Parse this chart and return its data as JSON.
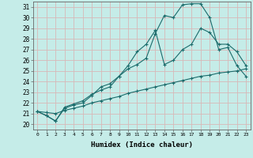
{
  "xlabel": "Humidex (Indice chaleur)",
  "background_color": "#c5ece8",
  "grid_color": "#d8b8b8",
  "line_color": "#1a6b6b",
  "xlim": [
    -0.5,
    23.5
  ],
  "ylim": [
    19.5,
    31.5
  ],
  "xticks": [
    0,
    1,
    2,
    3,
    4,
    5,
    6,
    7,
    8,
    9,
    10,
    11,
    12,
    13,
    14,
    15,
    16,
    17,
    18,
    19,
    20,
    21,
    22,
    23
  ],
  "yticks": [
    20,
    21,
    22,
    23,
    24,
    25,
    26,
    27,
    28,
    29,
    30,
    31
  ],
  "line1_x": [
    0,
    1,
    2,
    3,
    4,
    5,
    6,
    7,
    8,
    9,
    10,
    11,
    12,
    13,
    14,
    15,
    16,
    17,
    18,
    19,
    20,
    21,
    22,
    23
  ],
  "line1_y": [
    21.2,
    20.8,
    20.3,
    21.6,
    21.9,
    22.2,
    22.8,
    23.2,
    23.5,
    24.5,
    25.2,
    25.6,
    26.2,
    28.5,
    30.2,
    30.0,
    31.2,
    31.3,
    31.3,
    30.0,
    27.0,
    27.2,
    25.5,
    24.5
  ],
  "line2_x": [
    0,
    1,
    2,
    3,
    4,
    5,
    6,
    7,
    8,
    9,
    10,
    11,
    12,
    13,
    14,
    15,
    16,
    17,
    18,
    19,
    20,
    21,
    22,
    23
  ],
  "line2_y": [
    21.2,
    20.8,
    20.3,
    21.5,
    21.8,
    22.0,
    22.7,
    23.5,
    23.8,
    24.5,
    25.5,
    26.8,
    27.5,
    28.8,
    25.6,
    26.0,
    27.0,
    27.5,
    29.0,
    28.6,
    27.5,
    27.5,
    26.8,
    25.5
  ],
  "line3_x": [
    0,
    1,
    2,
    3,
    4,
    5,
    6,
    7,
    8,
    9,
    10,
    11,
    12,
    13,
    14,
    15,
    16,
    17,
    18,
    19,
    20,
    21,
    22,
    23
  ],
  "line3_y": [
    21.2,
    21.1,
    21.0,
    21.3,
    21.5,
    21.7,
    22.0,
    22.2,
    22.4,
    22.6,
    22.9,
    23.1,
    23.3,
    23.5,
    23.7,
    23.9,
    24.1,
    24.3,
    24.5,
    24.6,
    24.8,
    24.9,
    25.0,
    25.2
  ],
  "marker": "+"
}
